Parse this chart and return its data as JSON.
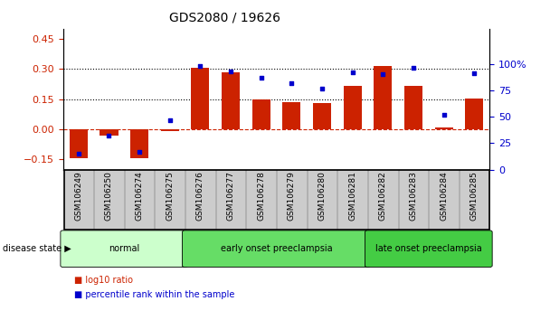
{
  "title": "GDS2080 / 19626",
  "categories": [
    "GSM106249",
    "GSM106250",
    "GSM106274",
    "GSM106275",
    "GSM106276",
    "GSM106277",
    "GSM106278",
    "GSM106279",
    "GSM106280",
    "GSM106281",
    "GSM106282",
    "GSM106283",
    "GSM106284",
    "GSM106285"
  ],
  "log10_ratio": [
    -0.145,
    -0.03,
    -0.145,
    -0.01,
    0.305,
    0.285,
    0.148,
    0.135,
    0.13,
    0.215,
    0.315,
    0.215,
    0.01,
    0.155
  ],
  "percentile_rank": [
    15,
    32,
    17,
    47,
    98,
    93,
    87,
    82,
    77,
    92,
    90,
    96,
    52,
    91
  ],
  "bar_color": "#cc2200",
  "dot_color": "#0000cc",
  "ylim_left": [
    -0.2,
    0.5
  ],
  "ylim_right": [
    0,
    133.33
  ],
  "yticks_left": [
    -0.15,
    0.0,
    0.15,
    0.3,
    0.45
  ],
  "yticks_right": [
    0,
    25,
    50,
    75,
    100
  ],
  "ytick_labels_right": [
    "0",
    "25",
    "50",
    "75",
    "100%"
  ],
  "hlines": [
    0.15,
    0.3
  ],
  "zero_line_color": "#cc2200",
  "hline_color": "black",
  "groups": [
    {
      "label": "normal",
      "start": 0,
      "end": 3,
      "color": "#ccffcc"
    },
    {
      "label": "early onset preeclampsia",
      "start": 4,
      "end": 9,
      "color": "#66dd66"
    },
    {
      "label": "late onset preeclampsia",
      "start": 10,
      "end": 13,
      "color": "#44cc44"
    }
  ],
  "disease_state_label": "disease state",
  "legend_items": [
    {
      "label": "log10 ratio",
      "color": "#cc2200"
    },
    {
      "label": "percentile rank within the sample",
      "color": "#0000cc"
    }
  ],
  "background_color": "#ffffff",
  "tick_label_bg": "#cccccc",
  "fig_width": 6.08,
  "fig_height": 3.54,
  "dpi": 100
}
